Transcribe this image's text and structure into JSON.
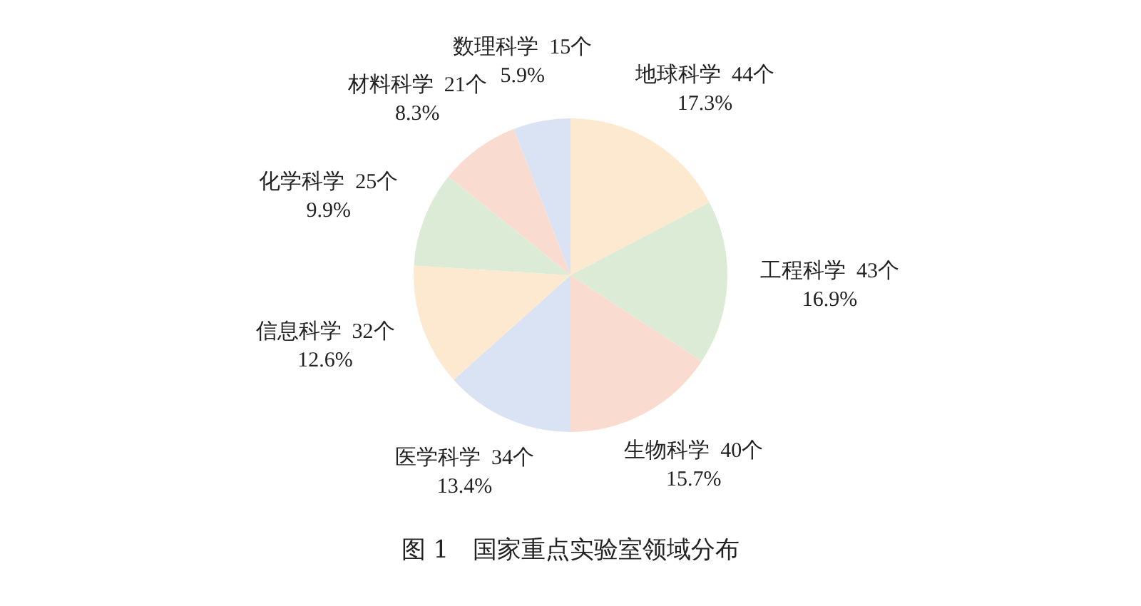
{
  "chart_data": {
    "type": "pie",
    "title": "图 1　国家重点实验室领域分布",
    "categories": [
      "地球科学",
      "工程科学",
      "生物科学",
      "医学科学",
      "信息科学",
      "化学科学",
      "材料科学",
      "数理科学"
    ],
    "values": [
      44,
      43,
      40,
      34,
      32,
      25,
      21,
      15
    ],
    "value_labels": [
      "44个\n17.3%",
      "43个\n16.9%",
      "40个\n15.7%",
      "34个\n13.4%",
      "32个\n12.6%",
      "25个\n9.9%",
      "21个\n8.3%",
      "15个\n5.9%"
    ],
    "colors": [
      "#fde9d0",
      "#dcebd5",
      "#fadbd0",
      "#dae3f3",
      "#fde9d0",
      "#dcebd5",
      "#fadbd0",
      "#dae3f3"
    ],
    "legend": false
  }
}
